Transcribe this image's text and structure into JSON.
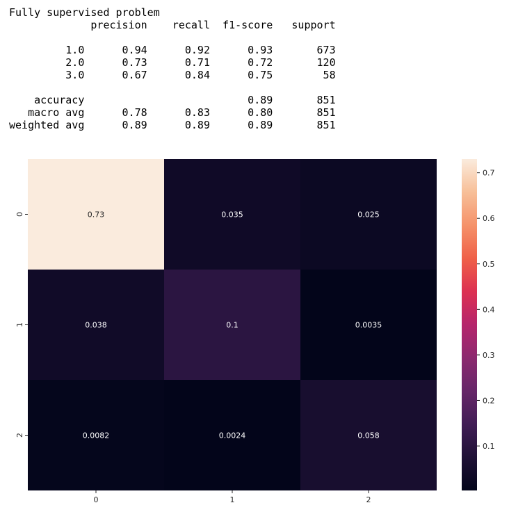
{
  "report": {
    "title": "Fully supervised problem",
    "headers": [
      "precision",
      "recall",
      "f1-score",
      "support"
    ],
    "class_rows": [
      {
        "label": "1.0",
        "precision": "0.94",
        "recall": "0.92",
        "f1": "0.93",
        "support": "673"
      },
      {
        "label": "2.0",
        "precision": "0.73",
        "recall": "0.71",
        "f1": "0.72",
        "support": "120"
      },
      {
        "label": "3.0",
        "precision": "0.67",
        "recall": "0.84",
        "f1": "0.75",
        "support": "58"
      }
    ],
    "summary_rows": [
      {
        "label": "accuracy",
        "precision": "",
        "recall": "",
        "f1": "0.89",
        "support": "851"
      },
      {
        "label": "macro avg",
        "precision": "0.78",
        "recall": "0.83",
        "f1": "0.80",
        "support": "851"
      },
      {
        "label": "weighted avg",
        "precision": "0.89",
        "recall": "0.89",
        "f1": "0.89",
        "support": "851"
      }
    ]
  },
  "chart_data": {
    "type": "heatmap",
    "x_categories": [
      "0",
      "1",
      "2"
    ],
    "y_categories": [
      "0",
      "1",
      "2"
    ],
    "values": [
      [
        0.73,
        0.035,
        0.025
      ],
      [
        0.038,
        0.1,
        0.0035
      ],
      [
        0.0082,
        0.0024,
        0.058
      ]
    ],
    "cell_labels": [
      [
        "0.73",
        "0.035",
        "0.025"
      ],
      [
        "0.038",
        "0.1",
        "0.0035"
      ],
      [
        "0.0082",
        "0.0024",
        "0.058"
      ]
    ],
    "colormap": "rocket",
    "colorbar": {
      "min": 0.0024,
      "max": 0.73,
      "ticks": [
        0.1,
        0.2,
        0.3,
        0.4,
        0.5,
        0.6,
        0.7
      ],
      "tick_labels": [
        "0.1",
        "0.2",
        "0.3",
        "0.4",
        "0.5",
        "0.6",
        "0.7"
      ]
    },
    "title": "",
    "xlabel": "",
    "ylabel": ""
  }
}
